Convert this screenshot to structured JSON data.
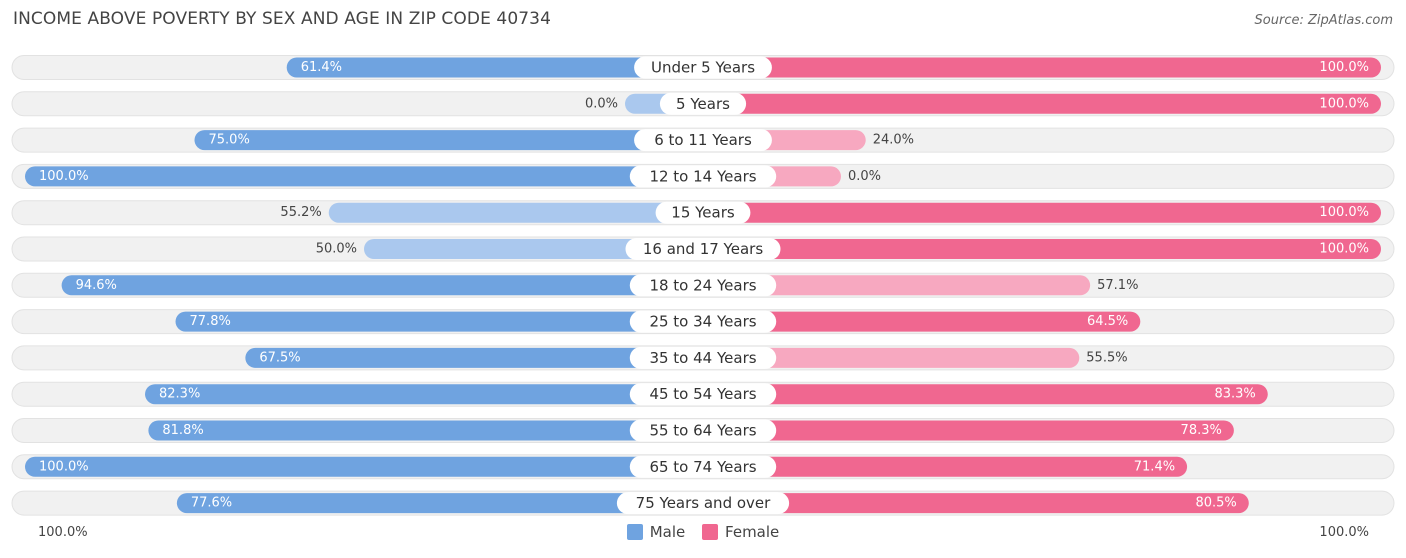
{
  "header": {
    "title": "INCOME ABOVE POVERTY BY SEX AND AGE IN ZIP CODE 40734",
    "source": "Source: ZipAtlas.com"
  },
  "colors": {
    "male": "#6fa3e0",
    "male_light": "#aac8ee",
    "female": "#f06790",
    "female_light": "#f7a8c0",
    "track": "#f1f1f1"
  },
  "chart_data": {
    "type": "bar",
    "orientation": "horizontal-diverging",
    "categories": [
      "Under 5 Years",
      "5 Years",
      "6 to 11 Years",
      "12 to 14 Years",
      "15 Years",
      "16 and 17 Years",
      "18 to 24 Years",
      "25 to 34 Years",
      "35 to 44 Years",
      "45 to 54 Years",
      "55 to 64 Years",
      "65 to 74 Years",
      "75 Years and over"
    ],
    "series": [
      {
        "name": "Male",
        "values": [
          61.4,
          0.0,
          75.0,
          100.0,
          55.2,
          50.0,
          94.6,
          77.8,
          67.5,
          82.3,
          81.8,
          100.0,
          77.6
        ],
        "labels": [
          "61.4%",
          "0.0%",
          "75.0%",
          "100.0%",
          "55.2%",
          "50.0%",
          "94.6%",
          "77.8%",
          "67.5%",
          "82.3%",
          "81.8%",
          "100.0%",
          "77.6%"
        ]
      },
      {
        "name": "Female",
        "values": [
          100.0,
          100.0,
          24.0,
          0.0,
          100.0,
          100.0,
          57.1,
          64.5,
          55.5,
          83.3,
          78.3,
          71.4,
          80.5
        ],
        "labels": [
          "100.0%",
          "100.0%",
          "24.0%",
          "0.0%",
          "100.0%",
          "100.0%",
          "57.1%",
          "64.5%",
          "55.5%",
          "83.3%",
          "78.3%",
          "71.4%",
          "80.5%"
        ]
      }
    ],
    "xlim": [
      0,
      100
    ],
    "axis_left_label": "100.0%",
    "axis_right_label": "100.0%",
    "legend_position": "bottom-center"
  }
}
